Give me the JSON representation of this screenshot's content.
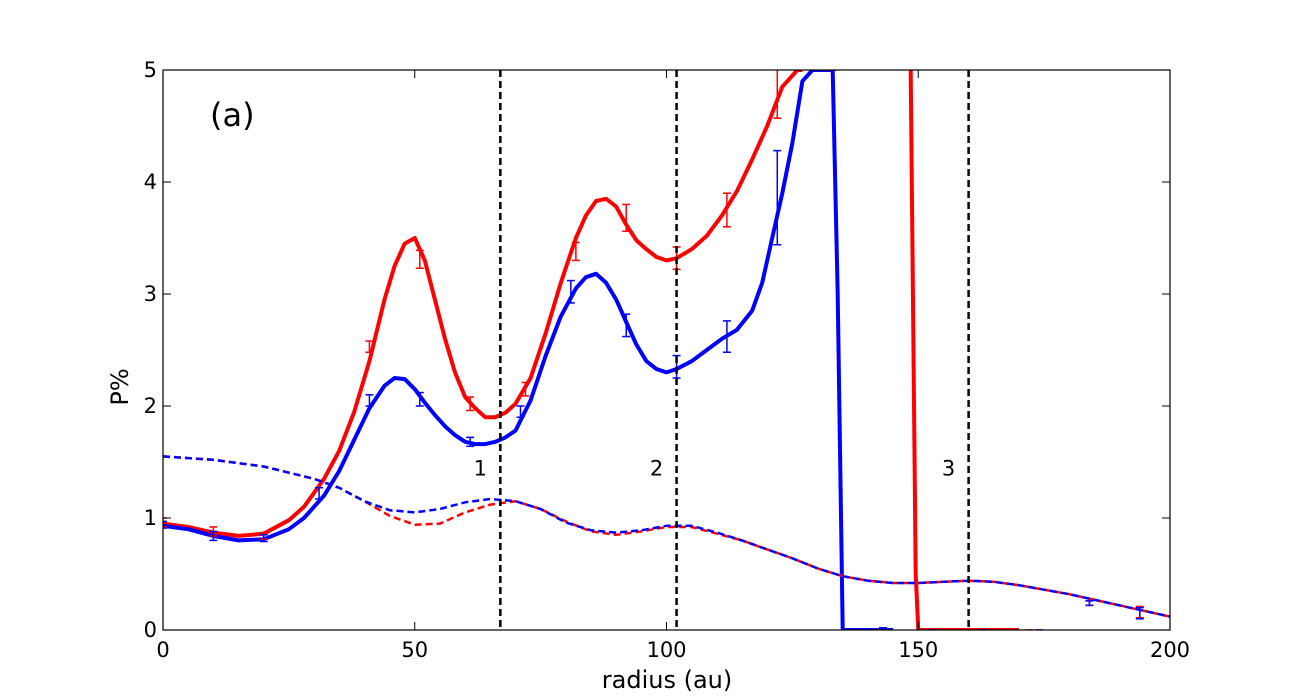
{
  "chart_data": {
    "type": "line",
    "title": "",
    "panel_label": "(a)",
    "xlabel": "radius (au)",
    "ylabel": "P%",
    "xlim": [
      0,
      200
    ],
    "ylim": [
      0,
      5
    ],
    "xticks": [
      0,
      50,
      100,
      150,
      200
    ],
    "yticks": [
      0,
      1,
      2,
      3,
      4,
      5
    ],
    "grid": false,
    "legend": "none",
    "colors": {
      "red": "#ff0000",
      "blue": "#0000ff",
      "black": "#000000"
    },
    "vlines": [
      {
        "x": 67,
        "label": "1"
      },
      {
        "x": 102,
        "label": "2"
      },
      {
        "x": 160,
        "label": "3"
      }
    ],
    "series": [
      {
        "color": "#ff0000",
        "style": "solid",
        "x": [
          0,
          5,
          10,
          15,
          20,
          25,
          28,
          32,
          35,
          38,
          41,
          44,
          46,
          48,
          50,
          52,
          54,
          56,
          58,
          60,
          62,
          64,
          66,
          68,
          70,
          73,
          76,
          79,
          82,
          84,
          86,
          88,
          90,
          92,
          94,
          96,
          98,
          100,
          102,
          105,
          108,
          111,
          114,
          117,
          120,
          123,
          126,
          127
        ],
        "y": [
          0.95,
          0.92,
          0.87,
          0.84,
          0.86,
          0.98,
          1.1,
          1.35,
          1.6,
          1.95,
          2.4,
          2.95,
          3.25,
          3.45,
          3.5,
          3.3,
          2.95,
          2.6,
          2.3,
          2.08,
          1.98,
          1.9,
          1.9,
          1.94,
          2.02,
          2.25,
          2.65,
          3.1,
          3.5,
          3.7,
          3.83,
          3.85,
          3.78,
          3.62,
          3.48,
          3.4,
          3.33,
          3.3,
          3.32,
          3.4,
          3.52,
          3.7,
          3.92,
          4.2,
          4.5,
          4.85,
          5.0,
          5.0
        ]
      },
      {
        "color": "#ff0000",
        "style": "solid",
        "x": [
          148.5,
          149.5,
          150,
          155,
          160,
          165,
          170
        ],
        "y": [
          5.0,
          0.5,
          0.0,
          0.0,
          0.0,
          0.0,
          0.0
        ]
      },
      {
        "color": "#0000ff",
        "style": "solid",
        "x": [
          0,
          5,
          10,
          15,
          20,
          25,
          28,
          32,
          35,
          38,
          41,
          44,
          46,
          48,
          50,
          52,
          54,
          56,
          58,
          60,
          62,
          64,
          66,
          68,
          70,
          73,
          76,
          79,
          82,
          84,
          86,
          88,
          90,
          92,
          94,
          96,
          98,
          100,
          102,
          105,
          108,
          111,
          114,
          117,
          119,
          121,
          123,
          125,
          127,
          129,
          131,
          133,
          134,
          135,
          140,
          145
        ],
        "y": [
          0.93,
          0.9,
          0.84,
          0.8,
          0.81,
          0.9,
          1.0,
          1.2,
          1.42,
          1.7,
          1.98,
          2.18,
          2.25,
          2.24,
          2.15,
          2.03,
          1.92,
          1.82,
          1.74,
          1.68,
          1.66,
          1.66,
          1.68,
          1.72,
          1.78,
          2.05,
          2.45,
          2.8,
          3.05,
          3.15,
          3.18,
          3.1,
          2.95,
          2.75,
          2.55,
          2.4,
          2.33,
          2.3,
          2.33,
          2.4,
          2.5,
          2.6,
          2.68,
          2.85,
          3.1,
          3.5,
          3.9,
          4.35,
          4.9,
          5.0,
          5.0,
          5.0,
          3.0,
          0.0,
          0.0,
          0.0
        ]
      },
      {
        "color": "#ff0000",
        "style": "dashed",
        "x": [
          0,
          10,
          20,
          30,
          35,
          40,
          45,
          50,
          55,
          60,
          65,
          70,
          75,
          80,
          85,
          90,
          95,
          100,
          105,
          110,
          115,
          120,
          125,
          130,
          135,
          140,
          145,
          150,
          155,
          160,
          165,
          170,
          175,
          180,
          185,
          190,
          195,
          200
        ],
        "y": [
          1.55,
          1.52,
          1.46,
          1.35,
          1.27,
          1.15,
          1.02,
          0.94,
          0.95,
          1.05,
          1.12,
          1.15,
          1.08,
          0.97,
          0.88,
          0.85,
          0.88,
          0.92,
          0.92,
          0.86,
          0.8,
          0.72,
          0.64,
          0.55,
          0.48,
          0.44,
          0.42,
          0.42,
          0.43,
          0.44,
          0.43,
          0.4,
          0.36,
          0.32,
          0.27,
          0.22,
          0.17,
          0.12
        ]
      },
      {
        "color": "#0000ff",
        "style": "dashed",
        "x": [
          0,
          10,
          20,
          30,
          35,
          40,
          45,
          50,
          55,
          60,
          65,
          70,
          75,
          80,
          85,
          90,
          95,
          100,
          105,
          110,
          115,
          120,
          125,
          130,
          135,
          140,
          145,
          150,
          155,
          160,
          165,
          170,
          175,
          180,
          185,
          190,
          195,
          200
        ],
        "y": [
          1.55,
          1.52,
          1.46,
          1.35,
          1.27,
          1.15,
          1.07,
          1.05,
          1.08,
          1.14,
          1.17,
          1.15,
          1.08,
          0.96,
          0.89,
          0.87,
          0.89,
          0.93,
          0.93,
          0.87,
          0.8,
          0.72,
          0.64,
          0.55,
          0.48,
          0.44,
          0.42,
          0.42,
          0.43,
          0.44,
          0.43,
          0.4,
          0.36,
          0.32,
          0.27,
          0.22,
          0.17,
          0.12
        ]
      }
    ],
    "errorbars": [
      {
        "color": "#ff0000",
        "x": [
          0,
          10,
          20,
          41,
          51,
          61,
          72,
          82,
          92,
          102,
          112,
          122,
          132,
          142,
          152,
          162,
          172,
          184,
          194
        ],
        "y": [
          0.96,
          0.88,
          0.84,
          2.53,
          3.31,
          2.02,
          2.15,
          3.38,
          3.68,
          3.32,
          3.75,
          4.85,
          5.0,
          0.0,
          0.0,
          0.0,
          0.0,
          0.24,
          0.16
        ],
        "err": [
          0.04,
          0.04,
          0.03,
          0.05,
          0.08,
          0.06,
          0.06,
          0.08,
          0.12,
          0.1,
          0.15,
          0.28,
          0.0,
          0.0,
          0.01,
          0.01,
          0.0,
          0.02,
          0.05
        ]
      },
      {
        "color": "#0000ff",
        "x": [
          0,
          10,
          20,
          31,
          41,
          51,
          61,
          71,
          81,
          92,
          102,
          112,
          122,
          133,
          143,
          153,
          163,
          174,
          184,
          194
        ],
        "y": [
          0.94,
          0.84,
          0.82,
          1.22,
          2.05,
          2.06,
          1.68,
          1.95,
          3.02,
          2.72,
          2.35,
          2.62,
          3.86,
          5.0,
          0.01,
          0.0,
          0.0,
          0.0,
          0.24,
          0.15
        ],
        "err": [
          0.03,
          0.04,
          0.03,
          0.05,
          0.05,
          0.06,
          0.04,
          0.05,
          0.1,
          0.1,
          0.1,
          0.14,
          0.42,
          0.0,
          0.01,
          0.0,
          0.0,
          0.0,
          0.02,
          0.05
        ]
      }
    ]
  }
}
